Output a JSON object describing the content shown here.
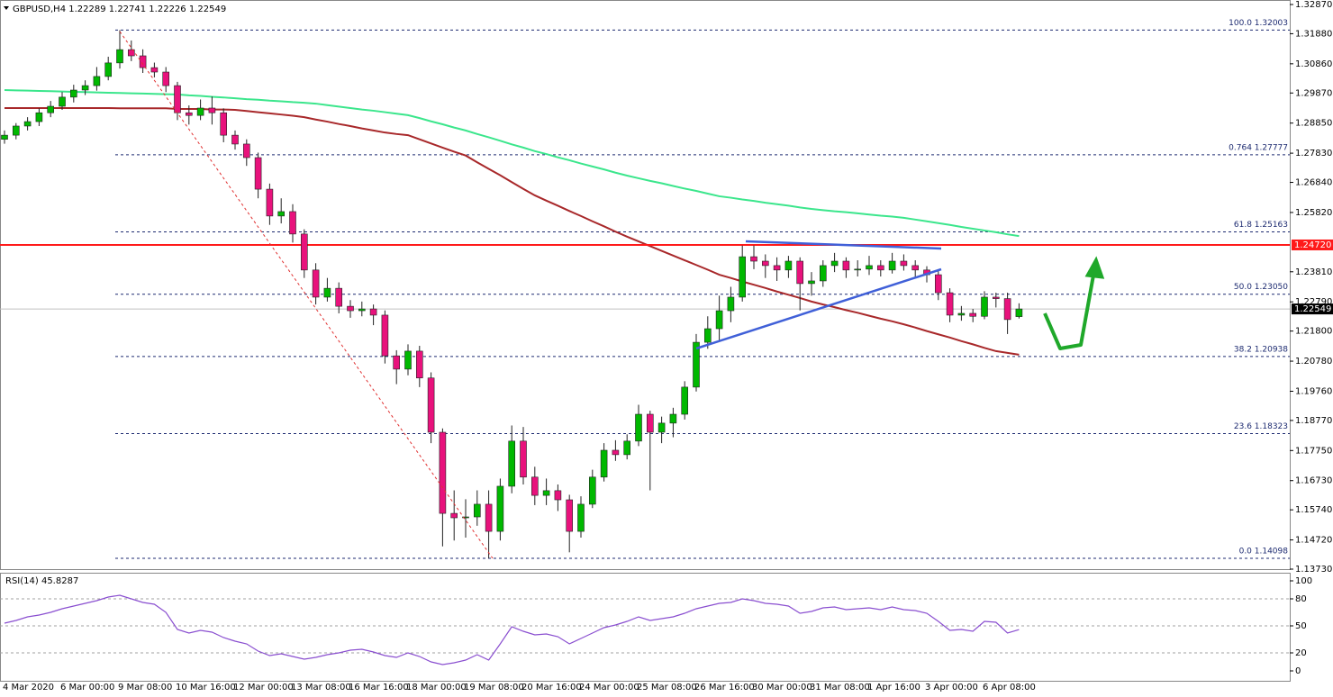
{
  "chart_data": [
    {
      "type": "candlestick",
      "title": "GBPUSD,H4  1.22289 1.22741 1.22226 1.22549",
      "up_color": "#00b800",
      "down_color": "#e8127c",
      "categories": [
        "4 Mar 2020",
        null,
        null,
        null,
        null,
        "6 Mar 00:00",
        null,
        null,
        null,
        null,
        "9 Mar 08:00",
        null,
        null,
        null,
        null,
        "10 Mar 16:00",
        null,
        null,
        null,
        null,
        "12 Mar 00:00",
        null,
        null,
        null,
        null,
        "13 Mar 08:00",
        null,
        null,
        null,
        null,
        "16 Mar 16:00",
        null,
        null,
        null,
        null,
        "18 Mar 00:00",
        null,
        null,
        null,
        null,
        "19 Mar 08:00",
        null,
        null,
        null,
        null,
        "20 Mar 16:00",
        null,
        null,
        null,
        null,
        "24 Mar 00:00",
        null,
        null,
        null,
        null,
        "25 Mar 08:00",
        null,
        null,
        null,
        null,
        "26 Mar 16:00",
        null,
        null,
        null,
        null,
        "30 Mar 00:00",
        null,
        null,
        null,
        null,
        "31 Mar 08:00",
        null,
        null,
        null,
        null,
        "1 Apr 16:00",
        null,
        null,
        null,
        null,
        "3 Apr 00:00",
        null,
        null,
        null,
        null,
        "6 Apr 08:00",
        null,
        null,
        null
      ],
      "ohlc": [
        [
          1.283,
          1.286,
          1.2815,
          1.2844
        ],
        [
          1.2844,
          1.2885,
          1.283,
          1.2875
        ],
        [
          1.2875,
          1.2905,
          1.286,
          1.289
        ],
        [
          1.289,
          1.2935,
          1.2875,
          1.292
        ],
        [
          1.292,
          1.296,
          1.2905,
          1.2942
        ],
        [
          1.2942,
          1.299,
          1.293,
          1.2973
        ],
        [
          1.2973,
          1.3015,
          1.2955,
          1.2997
        ],
        [
          1.2997,
          1.303,
          1.298,
          1.3012
        ],
        [
          1.3012,
          1.3075,
          1.2995,
          1.3043
        ],
        [
          1.3043,
          1.311,
          1.303,
          1.3089
        ],
        [
          1.3089,
          1.32,
          1.307,
          1.3134
        ],
        [
          1.3134,
          1.3165,
          1.3095,
          1.3113
        ],
        [
          1.3113,
          1.3135,
          1.3055,
          1.3073
        ],
        [
          1.3073,
          1.309,
          1.304,
          1.3058
        ],
        [
          1.3058,
          1.3075,
          1.299,
          1.3012
        ],
        [
          1.3012,
          1.3025,
          1.2895,
          1.292
        ],
        [
          1.292,
          1.2945,
          1.288,
          1.2911
        ],
        [
          1.2911,
          1.2965,
          1.2895,
          1.2936
        ],
        [
          1.2936,
          1.2975,
          1.288,
          1.292
        ],
        [
          1.292,
          1.2935,
          1.282,
          1.2844
        ],
        [
          1.2844,
          1.286,
          1.2795,
          1.2814
        ],
        [
          1.2814,
          1.283,
          1.274,
          1.2768
        ],
        [
          1.2768,
          1.2785,
          1.263,
          1.2661
        ],
        [
          1.2661,
          1.268,
          1.254,
          1.257
        ],
        [
          1.257,
          1.263,
          1.2545,
          1.2585
        ],
        [
          1.2585,
          1.261,
          1.248,
          1.2509
        ],
        [
          1.2509,
          1.2525,
          1.236,
          1.2387
        ],
        [
          1.2387,
          1.241,
          1.227,
          1.2295
        ],
        [
          1.2295,
          1.236,
          1.228,
          1.2325
        ],
        [
          1.2325,
          1.2345,
          1.224,
          1.2264
        ],
        [
          1.2264,
          1.2285,
          1.2225,
          1.2249
        ],
        [
          1.2249,
          1.228,
          1.223,
          1.2255
        ],
        [
          1.2255,
          1.227,
          1.22,
          1.2234
        ],
        [
          1.2234,
          1.225,
          1.207,
          1.2096
        ],
        [
          1.2096,
          1.2115,
          1.2,
          1.2051
        ],
        [
          1.2051,
          1.2135,
          1.203,
          1.2112
        ],
        [
          1.2112,
          1.213,
          1.199,
          1.2021
        ],
        [
          1.2021,
          1.204,
          1.18,
          1.1837
        ],
        [
          1.1837,
          1.185,
          1.145,
          1.1562
        ],
        [
          1.1562,
          1.164,
          1.147,
          1.1547
        ],
        [
          1.1547,
          1.161,
          1.148,
          1.155
        ],
        [
          1.155,
          1.164,
          1.152,
          1.1593
        ],
        [
          1.1593,
          1.164,
          1.141,
          1.1501
        ],
        [
          1.1501,
          1.168,
          1.147,
          1.1654
        ],
        [
          1.1654,
          1.186,
          1.163,
          1.1807
        ],
        [
          1.1807,
          1.1855,
          1.166,
          1.1685
        ],
        [
          1.1685,
          1.172,
          1.159,
          1.1623
        ],
        [
          1.1623,
          1.168,
          1.159,
          1.1639
        ],
        [
          1.1639,
          1.166,
          1.157,
          1.1608
        ],
        [
          1.1608,
          1.1625,
          1.143,
          1.1501
        ],
        [
          1.1501,
          1.162,
          1.148,
          1.1593
        ],
        [
          1.1593,
          1.171,
          1.158,
          1.1685
        ],
        [
          1.1685,
          1.18,
          1.167,
          1.1776
        ],
        [
          1.1776,
          1.181,
          1.174,
          1.1761
        ],
        [
          1.1761,
          1.183,
          1.1745,
          1.1807
        ],
        [
          1.1807,
          1.193,
          1.179,
          1.1898
        ],
        [
          1.1898,
          1.191,
          1.164,
          1.1837
        ],
        [
          1.1837,
          1.189,
          1.18,
          1.1868
        ],
        [
          1.1868,
          1.192,
          1.182,
          1.1898
        ],
        [
          1.1898,
          1.201,
          1.188,
          1.199
        ],
        [
          1.199,
          1.217,
          1.1975,
          1.2142
        ],
        [
          1.2142,
          1.223,
          1.212,
          1.2188
        ],
        [
          1.2188,
          1.23,
          1.215,
          1.2249
        ],
        [
          1.2249,
          1.233,
          1.221,
          1.2295
        ],
        [
          1.2295,
          1.247,
          1.228,
          1.2432
        ],
        [
          1.2432,
          1.247,
          1.239,
          1.2417
        ],
        [
          1.2417,
          1.244,
          1.236,
          1.2402
        ],
        [
          1.2402,
          1.243,
          1.235,
          1.2387
        ],
        [
          1.2387,
          1.2435,
          1.236,
          1.2417
        ],
        [
          1.2417,
          1.243,
          1.225,
          1.2341
        ],
        [
          1.2341,
          1.238,
          1.23,
          1.235
        ],
        [
          1.235,
          1.242,
          1.233,
          1.2402
        ],
        [
          1.2402,
          1.2445,
          1.238,
          1.2417
        ],
        [
          1.2417,
          1.243,
          1.236,
          1.2387
        ],
        [
          1.2387,
          1.242,
          1.2365,
          1.239
        ],
        [
          1.239,
          1.2435,
          1.237,
          1.2402
        ],
        [
          1.2402,
          1.242,
          1.2365,
          1.2387
        ],
        [
          1.2387,
          1.2445,
          1.2375,
          1.2417
        ],
        [
          1.2417,
          1.244,
          1.2385,
          1.2402
        ],
        [
          1.2402,
          1.242,
          1.236,
          1.2387
        ],
        [
          1.2387,
          1.24,
          1.2345,
          1.2371
        ],
        [
          1.2371,
          1.2385,
          1.2285,
          1.231
        ],
        [
          1.231,
          1.2325,
          1.221,
          1.2234
        ],
        [
          1.2234,
          1.2265,
          1.2215,
          1.224
        ],
        [
          1.224,
          1.2255,
          1.221,
          1.223
        ],
        [
          1.223,
          1.2315,
          1.222,
          1.2295
        ],
        [
          1.2295,
          1.231,
          1.226,
          1.229
        ],
        [
          1.229,
          1.231,
          1.217,
          1.2219
        ],
        [
          1.22289,
          1.22741,
          1.22226,
          1.22549
        ]
      ],
      "series": [
        {
          "color": "#3be68c",
          "values": [
            1.2997,
            1.2996,
            1.2995,
            1.2994,
            1.2993,
            1.2992,
            1.2991,
            1.299,
            1.2989,
            1.2988,
            1.2987,
            1.2986,
            1.2985,
            1.2984,
            1.2983,
            1.2982,
            1.2979,
            1.2977,
            1.2974,
            1.2972,
            1.2969,
            1.2966,
            1.2964,
            1.2961,
            1.2959,
            1.2956,
            1.2954,
            1.2951,
            1.2946,
            1.2941,
            1.2936,
            1.2931,
            1.2927,
            1.2922,
            1.2917,
            1.2912,
            1.2902,
            1.2891,
            1.2881,
            1.287,
            1.286,
            1.2848,
            1.2837,
            1.2825,
            1.2813,
            1.2802,
            1.279,
            1.278,
            1.2769,
            1.2759,
            1.2748,
            1.2738,
            1.2728,
            1.2717,
            1.2707,
            1.2698,
            1.2689,
            1.2681,
            1.2672,
            1.2663,
            1.2655,
            1.2646,
            1.2637,
            1.2632,
            1.2626,
            1.2621,
            1.2615,
            1.261,
            1.2605,
            1.2599,
            1.2594,
            1.259,
            1.2586,
            1.2583,
            1.2579,
            1.2575,
            1.2571,
            1.2568,
            1.2564,
            1.2558,
            1.2552,
            1.2546,
            1.254,
            1.2533,
            1.2527,
            1.2521,
            1.2515,
            1.2508,
            1.2502
          ]
        },
        {
          "color": "#a8282a",
          "values": [
            1.2936,
            1.2936,
            1.2936,
            1.2936,
            1.2936,
            1.2936,
            1.2936,
            1.2936,
            1.2936,
            1.2936,
            1.2935,
            1.2935,
            1.2935,
            1.2935,
            1.2935,
            1.2933,
            1.2933,
            1.2933,
            1.2931,
            1.2931,
            1.293,
            1.2926,
            1.2922,
            1.2918,
            1.2914,
            1.291,
            1.2905,
            1.2897,
            1.289,
            1.2882,
            1.2875,
            1.2867,
            1.286,
            1.2853,
            1.2848,
            1.2844,
            1.283,
            1.2816,
            1.2802,
            1.2788,
            1.2775,
            1.2752,
            1.273,
            1.2708,
            1.2685,
            1.2662,
            1.264,
            1.2622,
            1.2605,
            1.2587,
            1.257,
            1.2552,
            1.2535,
            1.2517,
            1.25,
            1.2484,
            1.2468,
            1.2452,
            1.2436,
            1.242,
            1.2404,
            1.2388,
            1.2371,
            1.236,
            1.2348,
            1.2337,
            1.2326,
            1.2314,
            1.2303,
            1.2292,
            1.228,
            1.227,
            1.2261,
            1.2251,
            1.2242,
            1.2232,
            1.2222,
            1.2213,
            1.2203,
            1.2192,
            1.218,
            1.2169,
            1.2158,
            1.2146,
            1.2135,
            1.2123,
            1.2112,
            1.2106,
            1.21
          ]
        }
      ],
      "ylim": [
        1.1373,
        1.3287
      ],
      "yticks": [
        {
          "value": 1.3287,
          "label": "1.32870"
        },
        {
          "value": 1.3188,
          "label": "1.31880"
        },
        {
          "value": 1.3086,
          "label": "1.30860"
        },
        {
          "value": 1.2987,
          "label": "1.29870"
        },
        {
          "value": 1.2885,
          "label": "1.28850"
        },
        {
          "value": 1.2783,
          "label": "1.27830"
        },
        {
          "value": 1.2684,
          "label": "1.26840"
        },
        {
          "value": 1.2582,
          "label": "1.25820"
        },
        {
          "value": 1.2381,
          "label": "1.23810"
        },
        {
          "value": 1.2279,
          "label": "1.22790"
        },
        {
          "value": 1.218,
          "label": "1.21800"
        },
        {
          "value": 1.2078,
          "label": "1.20780"
        },
        {
          "value": 1.1976,
          "label": "1.19760"
        },
        {
          "value": 1.1877,
          "label": "1.18770"
        },
        {
          "value": 1.1775,
          "label": "1.17750"
        },
        {
          "value": 1.1673,
          "label": "1.16730"
        },
        {
          "value": 1.1574,
          "label": "1.15740"
        },
        {
          "value": 1.1472,
          "label": "1.14720"
        },
        {
          "value": 1.1373,
          "label": "1.13730"
        }
      ],
      "fib_levels": [
        {
          "value": 1.32003,
          "label": "100.0 1.32003"
        },
        {
          "value": 1.27777,
          "label": "0.764 1.27777"
        },
        {
          "value": 1.25163,
          "label": "61.8 1.25163"
        },
        {
          "value": 1.2305,
          "label": "50.0 1.23050"
        },
        {
          "value": 1.20938,
          "label": "38.2 1.20938"
        },
        {
          "value": 1.18323,
          "label": "23.6 1.18323"
        },
        {
          "value": 1.14098,
          "label": "0.0 1.14098"
        }
      ],
      "resistance": {
        "value": 1.2472,
        "label": "1.24720",
        "color": "#ff1a1a"
      },
      "last_price": {
        "value": 1.22549,
        "label": "1.22549"
      }
    },
    {
      "type": "line",
      "title": "RSI(14) 45.8287",
      "color": "#8a4fd0",
      "values": [
        53,
        56,
        60,
        62,
        65,
        69,
        72,
        75,
        78,
        82,
        84,
        80,
        76,
        74,
        65,
        46,
        42,
        45,
        43,
        37,
        33,
        30,
        22,
        17,
        19,
        16,
        13,
        15,
        18,
        20,
        23,
        24,
        21,
        17,
        15,
        20,
        16,
        10,
        7,
        9,
        12,
        18,
        12,
        30,
        49,
        44,
        40,
        41,
        38,
        30,
        36,
        42,
        48,
        51,
        55,
        60,
        56,
        58,
        60,
        64,
        69,
        72,
        75,
        76,
        80,
        78,
        75,
        74,
        72,
        64,
        66,
        70,
        71,
        68,
        69,
        70,
        68,
        71,
        68,
        67,
        64,
        55,
        45,
        46,
        44,
        55,
        54,
        42,
        45.8287
      ],
      "ylim": [
        0,
        100
      ],
      "yticks": [
        100,
        80,
        50,
        20,
        0
      ],
      "levels": [
        80,
        50,
        20
      ]
    }
  ]
}
